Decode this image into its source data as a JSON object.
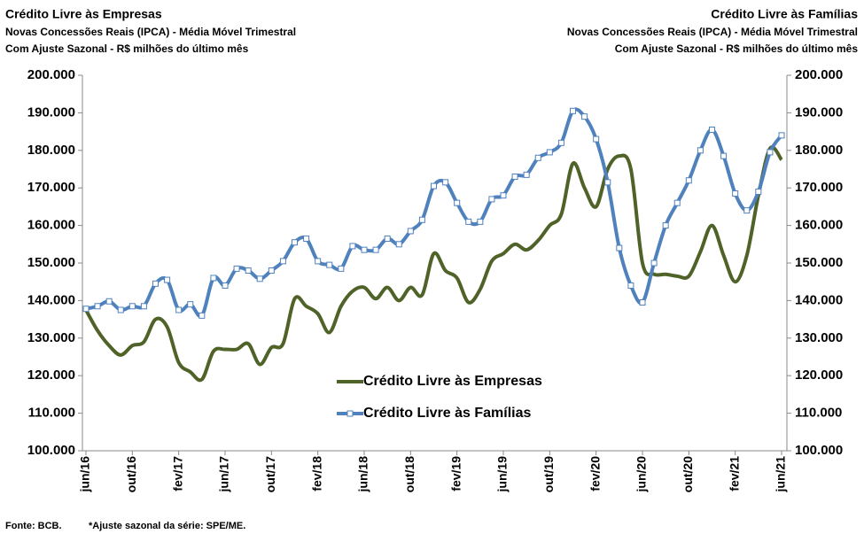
{
  "chart_data": {
    "type": "line",
    "titles": [
      [
        "Crédito Livre às Empresas",
        "Novas Concessões Reais (IPCA) - Média Móvel Trimestral",
        "Com Ajuste Sazonal - R$ milhões do último mês"
      ],
      [
        "Crédito Livre às Famílias",
        "Novas Concessões Reais (IPCA) - Média Móvel Trimestral",
        "Com Ajuste Sazonal - R$ milhões do último mês"
      ]
    ],
    "source": "Fonte: BCB.",
    "footnote": "*Ajuste sazonal da série: SPE/ME.",
    "categories": [
      "jun/16",
      null,
      null,
      null,
      "out/16",
      null,
      null,
      null,
      "fev/17",
      null,
      null,
      null,
      "jun/17",
      null,
      null,
      null,
      "out/17",
      null,
      null,
      null,
      "fev/18",
      null,
      null,
      null,
      "jun/18",
      null,
      null,
      null,
      "out/18",
      null,
      null,
      null,
      "fev/19",
      null,
      null,
      null,
      "jun/19",
      null,
      null,
      null,
      "out/19",
      null,
      null,
      null,
      "fev/20",
      null,
      null,
      null,
      "jun/20",
      null,
      null,
      null,
      "out/20",
      null,
      null,
      null,
      "fev/21",
      null,
      null,
      null,
      "jun/21"
    ],
    "series": [
      {
        "name": "Crédito Livre às Empresas",
        "color": "#4f6228",
        "axis": "y",
        "values": [
          137500,
          132000,
          128000,
          125500,
          128000,
          129000,
          135000,
          133000,
          123500,
          121000,
          119000,
          126500,
          127000,
          127000,
          128500,
          123000,
          127500,
          128500,
          140500,
          138500,
          136500,
          131500,
          138500,
          142500,
          143500,
          140500,
          143500,
          140000,
          143500,
          141500,
          152500,
          148000,
          146000,
          139500,
          143000,
          150500,
          152500,
          155000,
          153500,
          156000,
          160000,
          163000,
          176500,
          170000,
          165000,
          175000,
          178500,
          175000,
          150000,
          147000,
          147000,
          146500,
          146500,
          153000,
          160000,
          152000,
          145000,
          152000,
          168000,
          180500,
          177500
        ]
      },
      {
        "name": "Crédito Livre às Famílias",
        "color": "#4f81bd",
        "axis": "y2",
        "values": [
          137800,
          138500,
          139800,
          137500,
          138500,
          138500,
          144500,
          145500,
          137500,
          139000,
          136000,
          146000,
          144000,
          148500,
          148000,
          145800,
          148000,
          150500,
          155500,
          156500,
          150500,
          149500,
          148500,
          154500,
          153500,
          153500,
          156500,
          155000,
          158500,
          161500,
          170500,
          171500,
          166000,
          161000,
          161000,
          167000,
          168000,
          173000,
          173500,
          178000,
          179500,
          182000,
          190500,
          189000,
          183000,
          171500,
          154000,
          144000,
          139500,
          150000,
          160000,
          166000,
          172000,
          180000,
          185500,
          178500,
          168500,
          164000,
          169000,
          179500,
          184000
        ]
      }
    ],
    "ylim": [
      100000,
      200000
    ],
    "yticks": [
      {
        "value": 100000,
        "label": "100.000"
      },
      {
        "value": 110000,
        "label": "110.000"
      },
      {
        "value": 120000,
        "label": "120.000"
      },
      {
        "value": 130000,
        "label": "130.000"
      },
      {
        "value": 140000,
        "label": "140.000"
      },
      {
        "value": 150000,
        "label": "150.000"
      },
      {
        "value": 160000,
        "label": "160.000"
      },
      {
        "value": 170000,
        "label": "170.000"
      },
      {
        "value": 180000,
        "label": "180.000"
      },
      {
        "value": 190000,
        "label": "190.000"
      },
      {
        "value": 200000,
        "label": "200.000"
      }
    ],
    "y2lim": [
      100000,
      200000
    ],
    "y2ticks": [
      {
        "value": 100000,
        "label": "100.000"
      },
      {
        "value": 110000,
        "label": "110.000"
      },
      {
        "value": 120000,
        "label": "120.000"
      },
      {
        "value": 130000,
        "label": "130.000"
      },
      {
        "value": 140000,
        "label": "140.000"
      },
      {
        "value": 150000,
        "label": "150.000"
      },
      {
        "value": 160000,
        "label": "160.000"
      },
      {
        "value": 170000,
        "label": "170.000"
      },
      {
        "value": 180000,
        "label": "180.000"
      },
      {
        "value": 190000,
        "label": "190.000"
      },
      {
        "value": 200000,
        "label": "200.000"
      }
    ],
    "grid": false
  }
}
